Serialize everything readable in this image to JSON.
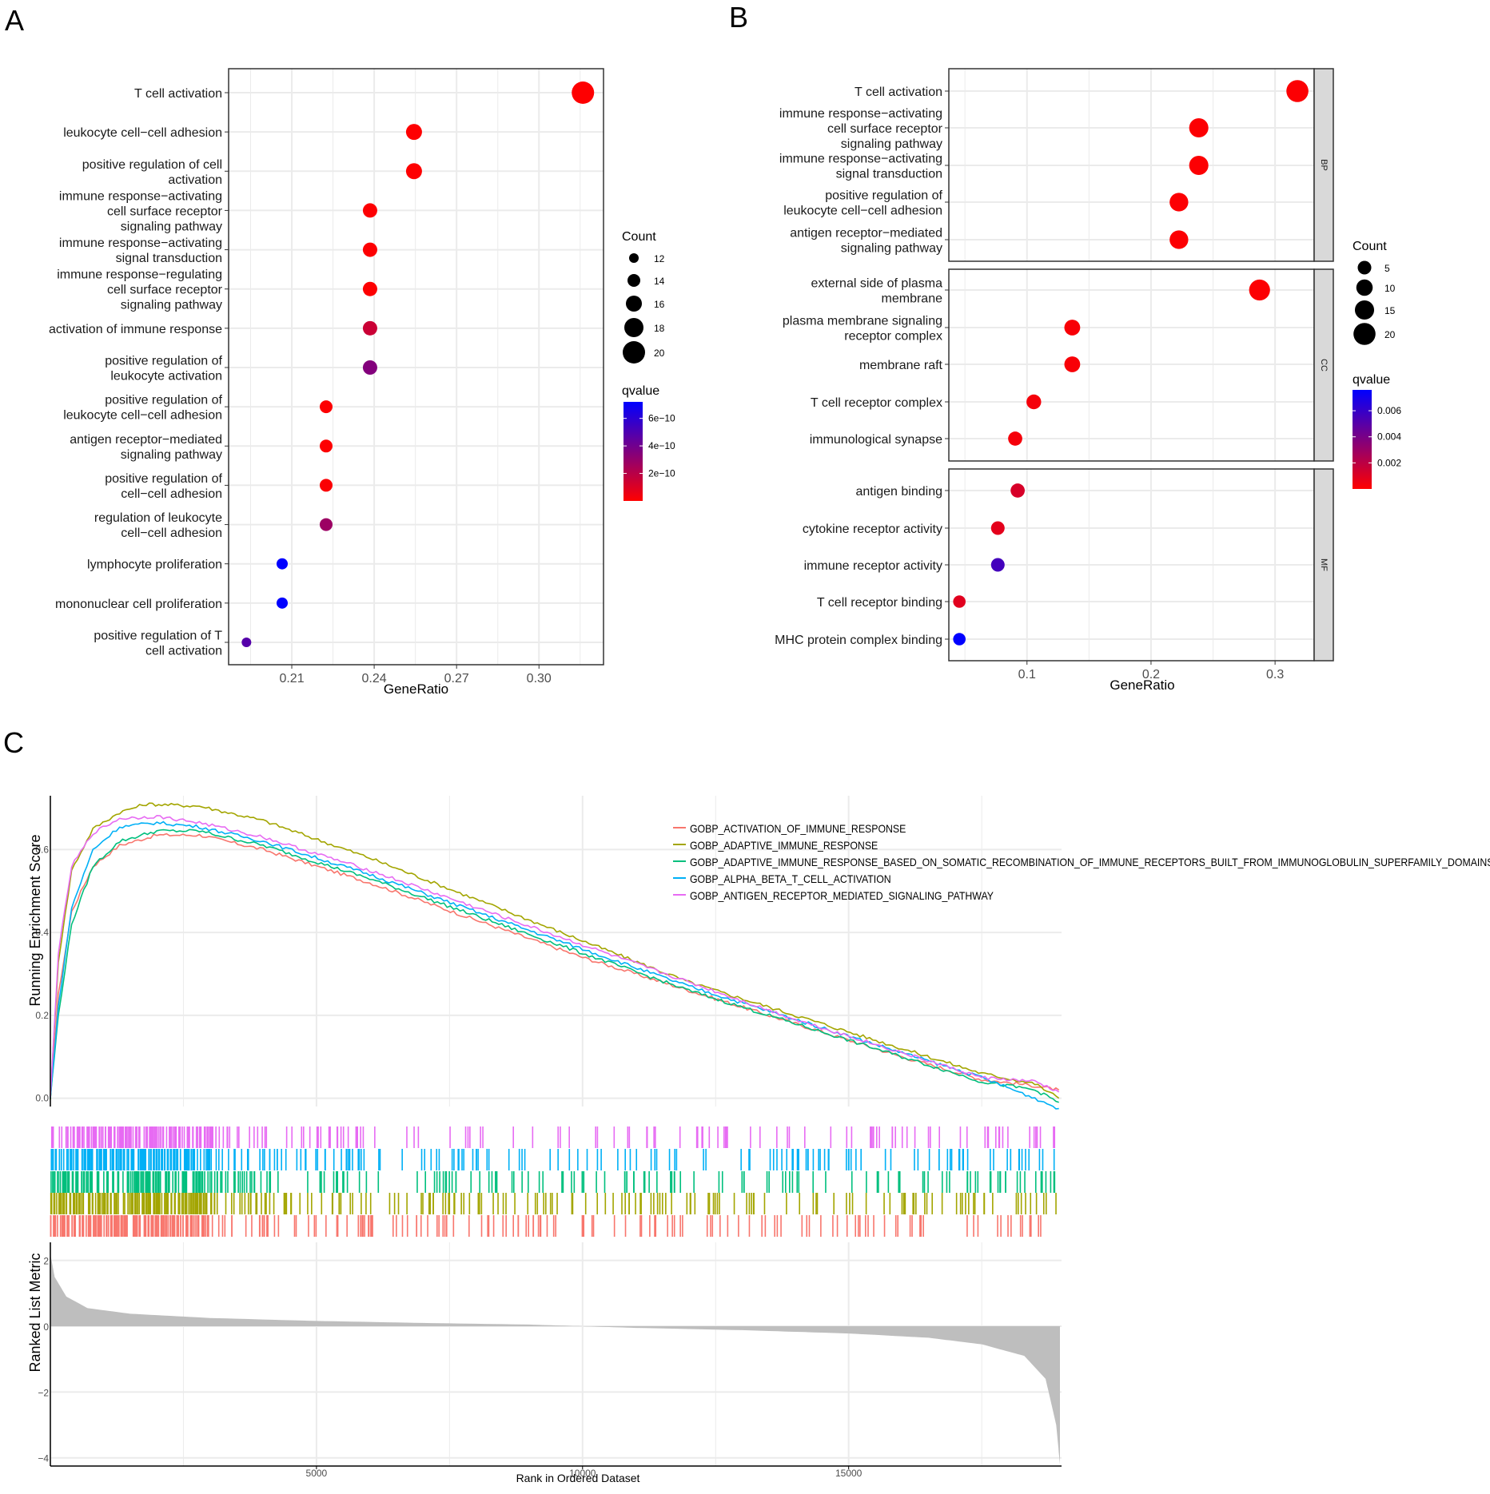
{
  "panel_labels": [
    "A",
    "B",
    "C"
  ],
  "colors": {
    "q_low": "#FF0000",
    "q_high": "#0000FF",
    "grid": "#EBEBEB",
    "strip_fill": "#D9D9D9",
    "metric_fill": "#BEBEBE",
    "gsea": [
      "#F8766D",
      "#A3A500",
      "#00BF7D",
      "#00B0F6",
      "#E76BF3"
    ]
  },
  "chart_data": [
    {
      "panel": "A",
      "type": "scatter",
      "xlabel": "GeneRatio",
      "xlim": [
        0.187,
        0.3235
      ],
      "xticks": [
        0.21,
        0.24,
        0.27,
        0.3
      ],
      "xtick_labels": [
        "0.21",
        "0.24",
        "0.27",
        "0.30"
      ],
      "terms": [
        {
          "label": [
            "T cell activation"
          ],
          "x": 0.316,
          "count": 20,
          "q": 0.02
        },
        {
          "label": [
            "leukocyte cell−cell adhesion"
          ],
          "x": 0.2545,
          "count": 16,
          "q": 0.03
        },
        {
          "label": [
            "positive regulation of cell",
            "activation"
          ],
          "x": 0.2545,
          "count": 16,
          "q": 0.03
        },
        {
          "label": [
            "immune response−activating",
            "cell surface receptor",
            "signaling pathway"
          ],
          "x": 0.2385,
          "count": 15,
          "q": 0.05
        },
        {
          "label": [
            "immune response−activating",
            "signal transduction"
          ],
          "x": 0.2385,
          "count": 15,
          "q": 0.05
        },
        {
          "label": [
            "immune response−regulating",
            "cell surface receptor",
            "signaling pathway"
          ],
          "x": 0.2385,
          "count": 15,
          "q": 0.05
        },
        {
          "label": [
            "activation of immune response"
          ],
          "x": 0.2385,
          "count": 15,
          "q": 1.5
        },
        {
          "label": [
            "positive regulation of",
            "leukocyte activation"
          ],
          "x": 0.2385,
          "count": 15,
          "q": 3.5
        },
        {
          "label": [
            "positive regulation of",
            "leukocyte cell−cell adhesion"
          ],
          "x": 0.2225,
          "count": 14,
          "q": 0.05
        },
        {
          "label": [
            "antigen receptor−mediated",
            "signaling pathway"
          ],
          "x": 0.2225,
          "count": 14,
          "q": 0.05
        },
        {
          "label": [
            "positive regulation of",
            "cell−cell adhesion"
          ],
          "x": 0.2225,
          "count": 14,
          "q": 0.1
        },
        {
          "label": [
            "regulation of leukocyte",
            "cell−cell adhesion"
          ],
          "x": 0.2225,
          "count": 14,
          "q": 2.8
        },
        {
          "label": [
            "lymphocyte proliferation"
          ],
          "x": 0.2065,
          "count": 13,
          "q": 7.2
        },
        {
          "label": [
            "mononuclear cell proliferation"
          ],
          "x": 0.2065,
          "count": 13,
          "q": 7.2
        },
        {
          "label": [
            "positive regulation of T",
            "cell activation"
          ],
          "x": 0.1935,
          "count": 12,
          "q": 4.8
        }
      ],
      "size_legend": {
        "title": "Count",
        "values": [
          12,
          14,
          16,
          18,
          20
        ]
      },
      "color_legend": {
        "title": "qvalue",
        "range": [
          0,
          7.2
        ],
        "ticks": [
          2,
          4,
          6
        ],
        "tick_labels": [
          "2e−10",
          "4e−10",
          "6e−10"
        ]
      }
    },
    {
      "panel": "B",
      "type": "scatter",
      "xlabel": "GeneRatio",
      "xlim": [
        0.037,
        0.3315
      ],
      "xticks": [
        0.1,
        0.2,
        0.3
      ],
      "xtick_labels": [
        "0.1",
        "0.2",
        "0.3"
      ],
      "facets": [
        {
          "name": "BP",
          "terms": [
            {
              "label": [
                "T cell activation"
              ],
              "x": 0.318,
              "count": 20,
              "q": 0.0001
            },
            {
              "label": [
                "immune response−activating",
                "cell surface receptor",
                "signaling pathway"
              ],
              "x": 0.2385,
              "count": 15,
              "q": 0.0001
            },
            {
              "label": [
                "immune response−activating",
                "signal transduction"
              ],
              "x": 0.2385,
              "count": 15,
              "q": 0.0001
            },
            {
              "label": [
                "positive regulation of",
                "leukocyte cell−cell adhesion"
              ],
              "x": 0.2225,
              "count": 14,
              "q": 0.0001
            },
            {
              "label": [
                "antigen receptor−mediated",
                "signaling pathway"
              ],
              "x": 0.2225,
              "count": 14,
              "q": 0.0001
            }
          ]
        },
        {
          "name": "CC",
          "terms": [
            {
              "label": [
                "external side of plasma",
                "membrane"
              ],
              "x": 0.2875,
              "count": 18,
              "q": 0.0001
            },
            {
              "label": [
                "plasma membrane signaling",
                "receptor complex"
              ],
              "x": 0.1365,
              "count": 9,
              "q": 0.0002
            },
            {
              "label": [
                "membrane raft"
              ],
              "x": 0.1365,
              "count": 9,
              "q": 0.0002
            },
            {
              "label": [
                "T cell receptor complex"
              ],
              "x": 0.1055,
              "count": 7,
              "q": 0.0003
            },
            {
              "label": [
                "immunological synapse"
              ],
              "x": 0.0905,
              "count": 6,
              "q": 0.0003
            }
          ]
        },
        {
          "name": "MF",
          "terms": [
            {
              "label": [
                "antigen binding"
              ],
              "x": 0.0925,
              "count": 6,
              "q": 0.0012
            },
            {
              "label": [
                "cytokine receptor activity"
              ],
              "x": 0.0765,
              "count": 5,
              "q": 0.0008
            },
            {
              "label": [
                "immune receptor activity"
              ],
              "x": 0.0765,
              "count": 5,
              "q": 0.0056
            },
            {
              "label": [
                "T cell receptor binding"
              ],
              "x": 0.0455,
              "count": 3,
              "q": 0.0009
            },
            {
              "label": [
                "MHC protein complex binding"
              ],
              "x": 0.0455,
              "count": 3,
              "q": 0.0076
            }
          ]
        }
      ],
      "size_legend": {
        "title": "Count",
        "values": [
          5,
          10,
          15,
          20
        ]
      },
      "color_legend": {
        "title": "qvalue",
        "range": [
          0,
          0.0076
        ],
        "ticks": [
          0.002,
          0.004,
          0.006
        ],
        "tick_labels": [
          "0.002",
          "0.004",
          "0.006"
        ]
      }
    },
    {
      "panel": "C",
      "type": "line",
      "top": {
        "ylabel": "Running Enrichment Score",
        "ylim": [
          -0.02,
          0.73
        ],
        "yticks": [
          0.0,
          0.2,
          0.4,
          0.6
        ],
        "ytick_labels": [
          "0.0",
          "0.2",
          "0.4",
          "0.6"
        ]
      },
      "bottom": {
        "ylabel": "Ranked List Metric",
        "ylim": [
          -4.25,
          2.55
        ],
        "yticks": [
          2,
          0,
          -2,
          -4
        ],
        "ytick_labels": [
          "2",
          "0",
          "−2",
          "−4"
        ],
        "metric_curve": [
          [
            0,
            2.2
          ],
          [
            80,
            1.5
          ],
          [
            300,
            0.9
          ],
          [
            700,
            0.55
          ],
          [
            1500,
            0.38
          ],
          [
            3000,
            0.25
          ],
          [
            5000,
            0.16
          ],
          [
            7000,
            0.1
          ],
          [
            9000,
            0.05
          ],
          [
            10000,
            0.0
          ],
          [
            11000,
            -0.05
          ],
          [
            13000,
            -0.12
          ],
          [
            15000,
            -0.22
          ],
          [
            16500,
            -0.35
          ],
          [
            17500,
            -0.55
          ],
          [
            18300,
            -0.9
          ],
          [
            18700,
            -1.6
          ],
          [
            18900,
            -3.0
          ],
          [
            18970,
            -4.2
          ]
        ]
      },
      "xlabel": "Rank in Ordered Dataset",
      "xlim": [
        0,
        19000
      ],
      "xticks": [
        5000,
        10000,
        15000
      ],
      "xtick_labels": [
        "5000",
        "10000",
        "15000"
      ],
      "series": [
        {
          "name": "GOBP_ACTIVATION_OF_IMMUNE_RESPONSE",
          "points": [
            [
              0,
              0.0
            ],
            [
              150,
              0.25
            ],
            [
              400,
              0.45
            ],
            [
              800,
              0.56
            ],
            [
              1300,
              0.61
            ],
            [
              2000,
              0.635
            ],
            [
              2800,
              0.635
            ],
            [
              4000,
              0.6
            ],
            [
              6000,
              0.52
            ],
            [
              8000,
              0.43
            ],
            [
              10000,
              0.34
            ],
            [
              12000,
              0.26
            ],
            [
              14000,
              0.18
            ],
            [
              16000,
              0.1
            ],
            [
              17500,
              0.045
            ],
            [
              18500,
              0.03
            ],
            [
              18950,
              0.02
            ]
          ]
        },
        {
          "name": "GOBP_ADAPTIVE_IMMUNE_RESPONSE",
          "points": [
            [
              0,
              0.0
            ],
            [
              150,
              0.33
            ],
            [
              400,
              0.55
            ],
            [
              800,
              0.65
            ],
            [
              1300,
              0.69
            ],
            [
              1800,
              0.71
            ],
            [
              2800,
              0.705
            ],
            [
              4000,
              0.67
            ],
            [
              6000,
              0.58
            ],
            [
              8000,
              0.48
            ],
            [
              10000,
              0.38
            ],
            [
              12000,
              0.28
            ],
            [
              14000,
              0.2
            ],
            [
              16000,
              0.12
            ],
            [
              17500,
              0.06
            ],
            [
              18500,
              0.035
            ],
            [
              18950,
              0.0
            ]
          ]
        },
        {
          "name": "GOBP_ADAPTIVE_IMMUNE_RESPONSE_BASED_ON_SOMATIC_RECOMBINATION_OF_IMMUNE_RECEPTORS_BUILT_FROM_IMMUNOGLOBULIN_SUPERFAMILY_DOMAINS",
          "points": [
            [
              0,
              0.0
            ],
            [
              150,
              0.2
            ],
            [
              400,
              0.42
            ],
            [
              800,
              0.56
            ],
            [
              1300,
              0.62
            ],
            [
              2000,
              0.645
            ],
            [
              2800,
              0.645
            ],
            [
              4000,
              0.61
            ],
            [
              6000,
              0.53
            ],
            [
              8000,
              0.44
            ],
            [
              10000,
              0.35
            ],
            [
              12000,
              0.26
            ],
            [
              14000,
              0.18
            ],
            [
              16000,
              0.1
            ],
            [
              17500,
              0.04
            ],
            [
              18500,
              0.02
            ],
            [
              18950,
              -0.01
            ]
          ]
        },
        {
          "name": "GOBP_ALPHA_BETA_T_CELL_ACTIVATION",
          "points": [
            [
              0,
              0.0
            ],
            [
              150,
              0.22
            ],
            [
              400,
              0.46
            ],
            [
              800,
              0.6
            ],
            [
              1300,
              0.655
            ],
            [
              2000,
              0.665
            ],
            [
              2800,
              0.655
            ],
            [
              4000,
              0.62
            ],
            [
              6000,
              0.54
            ],
            [
              8000,
              0.45
            ],
            [
              10000,
              0.36
            ],
            [
              12000,
              0.27
            ],
            [
              14000,
              0.19
            ],
            [
              16000,
              0.11
            ],
            [
              17500,
              0.05
            ],
            [
              18500,
              0.0
            ],
            [
              18950,
              -0.025
            ]
          ]
        },
        {
          "name": "GOBP_ANTIGEN_RECEPTOR_MEDIATED_SIGNALING_PATHWAY",
          "points": [
            [
              0,
              0.0
            ],
            [
              150,
              0.35
            ],
            [
              400,
              0.56
            ],
            [
              800,
              0.64
            ],
            [
              1300,
              0.675
            ],
            [
              2000,
              0.68
            ],
            [
              2800,
              0.665
            ],
            [
              4000,
              0.63
            ],
            [
              6000,
              0.55
            ],
            [
              8000,
              0.46
            ],
            [
              10000,
              0.37
            ],
            [
              12000,
              0.28
            ],
            [
              14000,
              0.19
            ],
            [
              16000,
              0.11
            ],
            [
              17500,
              0.05
            ],
            [
              18500,
              0.04
            ],
            [
              18950,
              0.015
            ]
          ]
        }
      ]
    }
  ]
}
